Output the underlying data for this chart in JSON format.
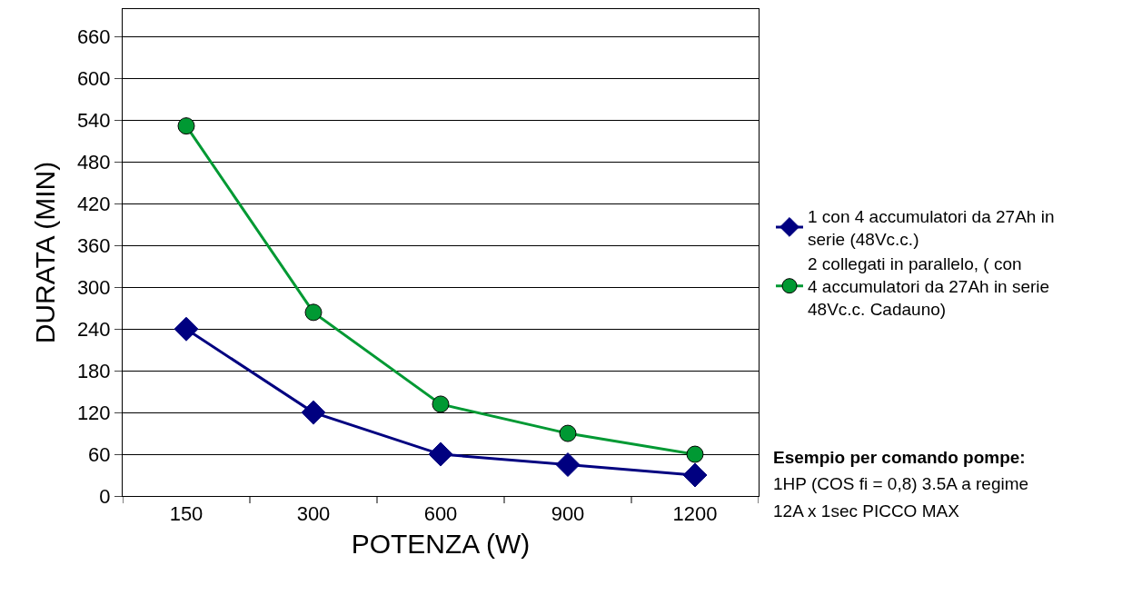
{
  "chart_data": {
    "type": "line",
    "xlabel": "POTENZA (W)",
    "ylabel": "DURATA (MIN)",
    "categories": [
      "150",
      "300",
      "600",
      "900",
      "1200"
    ],
    "series": [
      {
        "name": "1 con 4 accumulatori da 27Ah in serie (48Vc.c.)",
        "color": "#000080",
        "marker": "diamond",
        "values": [
          240,
          120,
          60,
          45,
          30
        ]
      },
      {
        "name": "2 collegati in parallelo, ( con 4 accumulatori da 27Ah in serie 48Vc.c. Cadauno)",
        "color": "#009933",
        "marker": "circle",
        "values": [
          532,
          264,
          132,
          90,
          60
        ]
      }
    ],
    "ylim": [
      0,
      700
    ],
    "yticks": [
      0,
      60,
      120,
      180,
      240,
      300,
      360,
      420,
      480,
      540,
      600,
      660
    ],
    "grid": "y",
    "legend": "right",
    "line_style": "solid",
    "annotations": [
      "Esempio per comando pompe:",
      "1HP (COS fi = 0,8) 3.5A a regime",
      "12A x 1sec PICCO MAX"
    ]
  }
}
